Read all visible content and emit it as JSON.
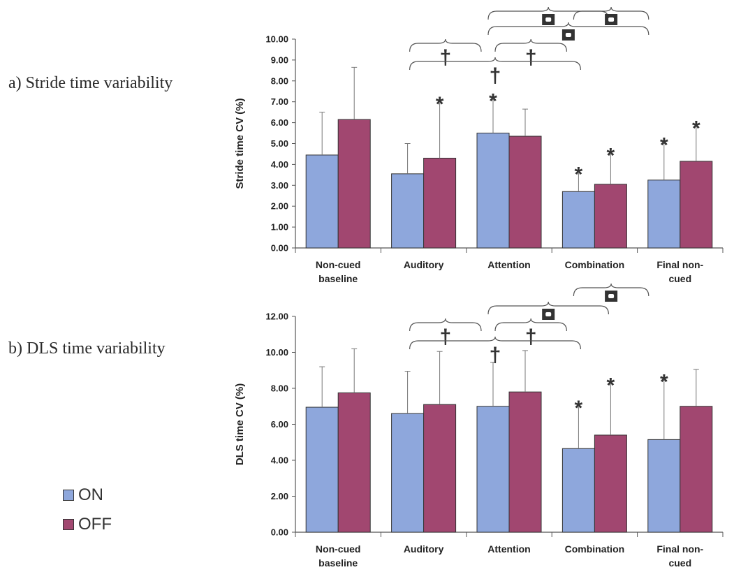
{
  "panels": [
    {
      "label": "a) Stride time variability"
    },
    {
      "label": "b) DLS time variability"
    }
  ],
  "legend": [
    {
      "name": "ON",
      "color": "#8ea7dc"
    },
    {
      "name": "OFF",
      "color": "#a14770"
    }
  ],
  "chart_data": [
    {
      "type": "bar",
      "title": "",
      "ylabel": "Stride time CV (%)",
      "ylim": [
        0,
        10
      ],
      "yticks": [
        "0.00",
        "1.00",
        "2.00",
        "3.00",
        "4.00",
        "5.00",
        "6.00",
        "7.00",
        "8.00",
        "9.00",
        "10.00"
      ],
      "categories": [
        [
          "Non-cued",
          "baseline"
        ],
        [
          "Auditory"
        ],
        [
          "Attention"
        ],
        [
          "Combination"
        ],
        [
          "Final non-",
          "cued"
        ]
      ],
      "series": [
        {
          "name": "ON",
          "values": [
            4.45,
            3.55,
            5.5,
            2.7,
            3.25
          ],
          "errors": [
            6.5,
            5.0,
            7.1,
            3.6,
            5.0
          ]
        },
        {
          "name": "OFF",
          "values": [
            6.15,
            4.3,
            5.35,
            3.05,
            4.15
          ],
          "errors": [
            8.65,
            6.95,
            6.65,
            4.5,
            5.8
          ]
        }
      ],
      "stars": [
        {
          "cat": 1,
          "series": 1
        },
        {
          "cat": 2,
          "series": 0
        },
        {
          "cat": 3,
          "series": 0
        },
        {
          "cat": 3,
          "series": 1
        },
        {
          "cat": 4,
          "series": 0
        },
        {
          "cat": 4,
          "series": 1
        }
      ],
      "daggers": [
        {
          "from": 1,
          "to": 2
        },
        {
          "from": 2,
          "to": 3
        },
        {
          "from": 1,
          "to": 3
        }
      ],
      "squares": [
        {
          "from": 2,
          "to": 4
        },
        {
          "from": 2,
          "to": 3
        },
        {
          "from": 3,
          "to": 4
        }
      ]
    },
    {
      "type": "bar",
      "title": "",
      "ylabel": "DLS time CV (%)",
      "ylim": [
        0,
        12
      ],
      "yticks": [
        "0.00",
        "2.00",
        "4.00",
        "6.00",
        "8.00",
        "10.00",
        "12.00"
      ],
      "categories": [
        [
          "Non-cued",
          "baseline"
        ],
        [
          "Auditory"
        ],
        [
          "Attention"
        ],
        [
          "Combination"
        ],
        [
          "Final non-",
          "cued"
        ]
      ],
      "series": [
        {
          "name": "ON",
          "values": [
            6.95,
            6.6,
            7.0,
            4.65,
            5.15
          ],
          "errors": [
            9.2,
            8.95,
            9.45,
            7.0,
            8.45
          ]
        },
        {
          "name": "OFF",
          "values": [
            7.75,
            7.1,
            7.8,
            5.4,
            7.0
          ],
          "errors": [
            10.2,
            10.05,
            10.1,
            8.25,
            9.05
          ]
        }
      ],
      "stars": [
        {
          "cat": 3,
          "series": 0
        },
        {
          "cat": 3,
          "series": 1
        },
        {
          "cat": 4,
          "series": 0
        }
      ],
      "daggers": [
        {
          "from": 1,
          "to": 2
        },
        {
          "from": 2,
          "to": 3
        },
        {
          "from": 1,
          "to": 3
        }
      ],
      "squares": [
        {
          "from": 2,
          "to": 3
        },
        {
          "from": 3,
          "to": 4
        }
      ]
    }
  ]
}
